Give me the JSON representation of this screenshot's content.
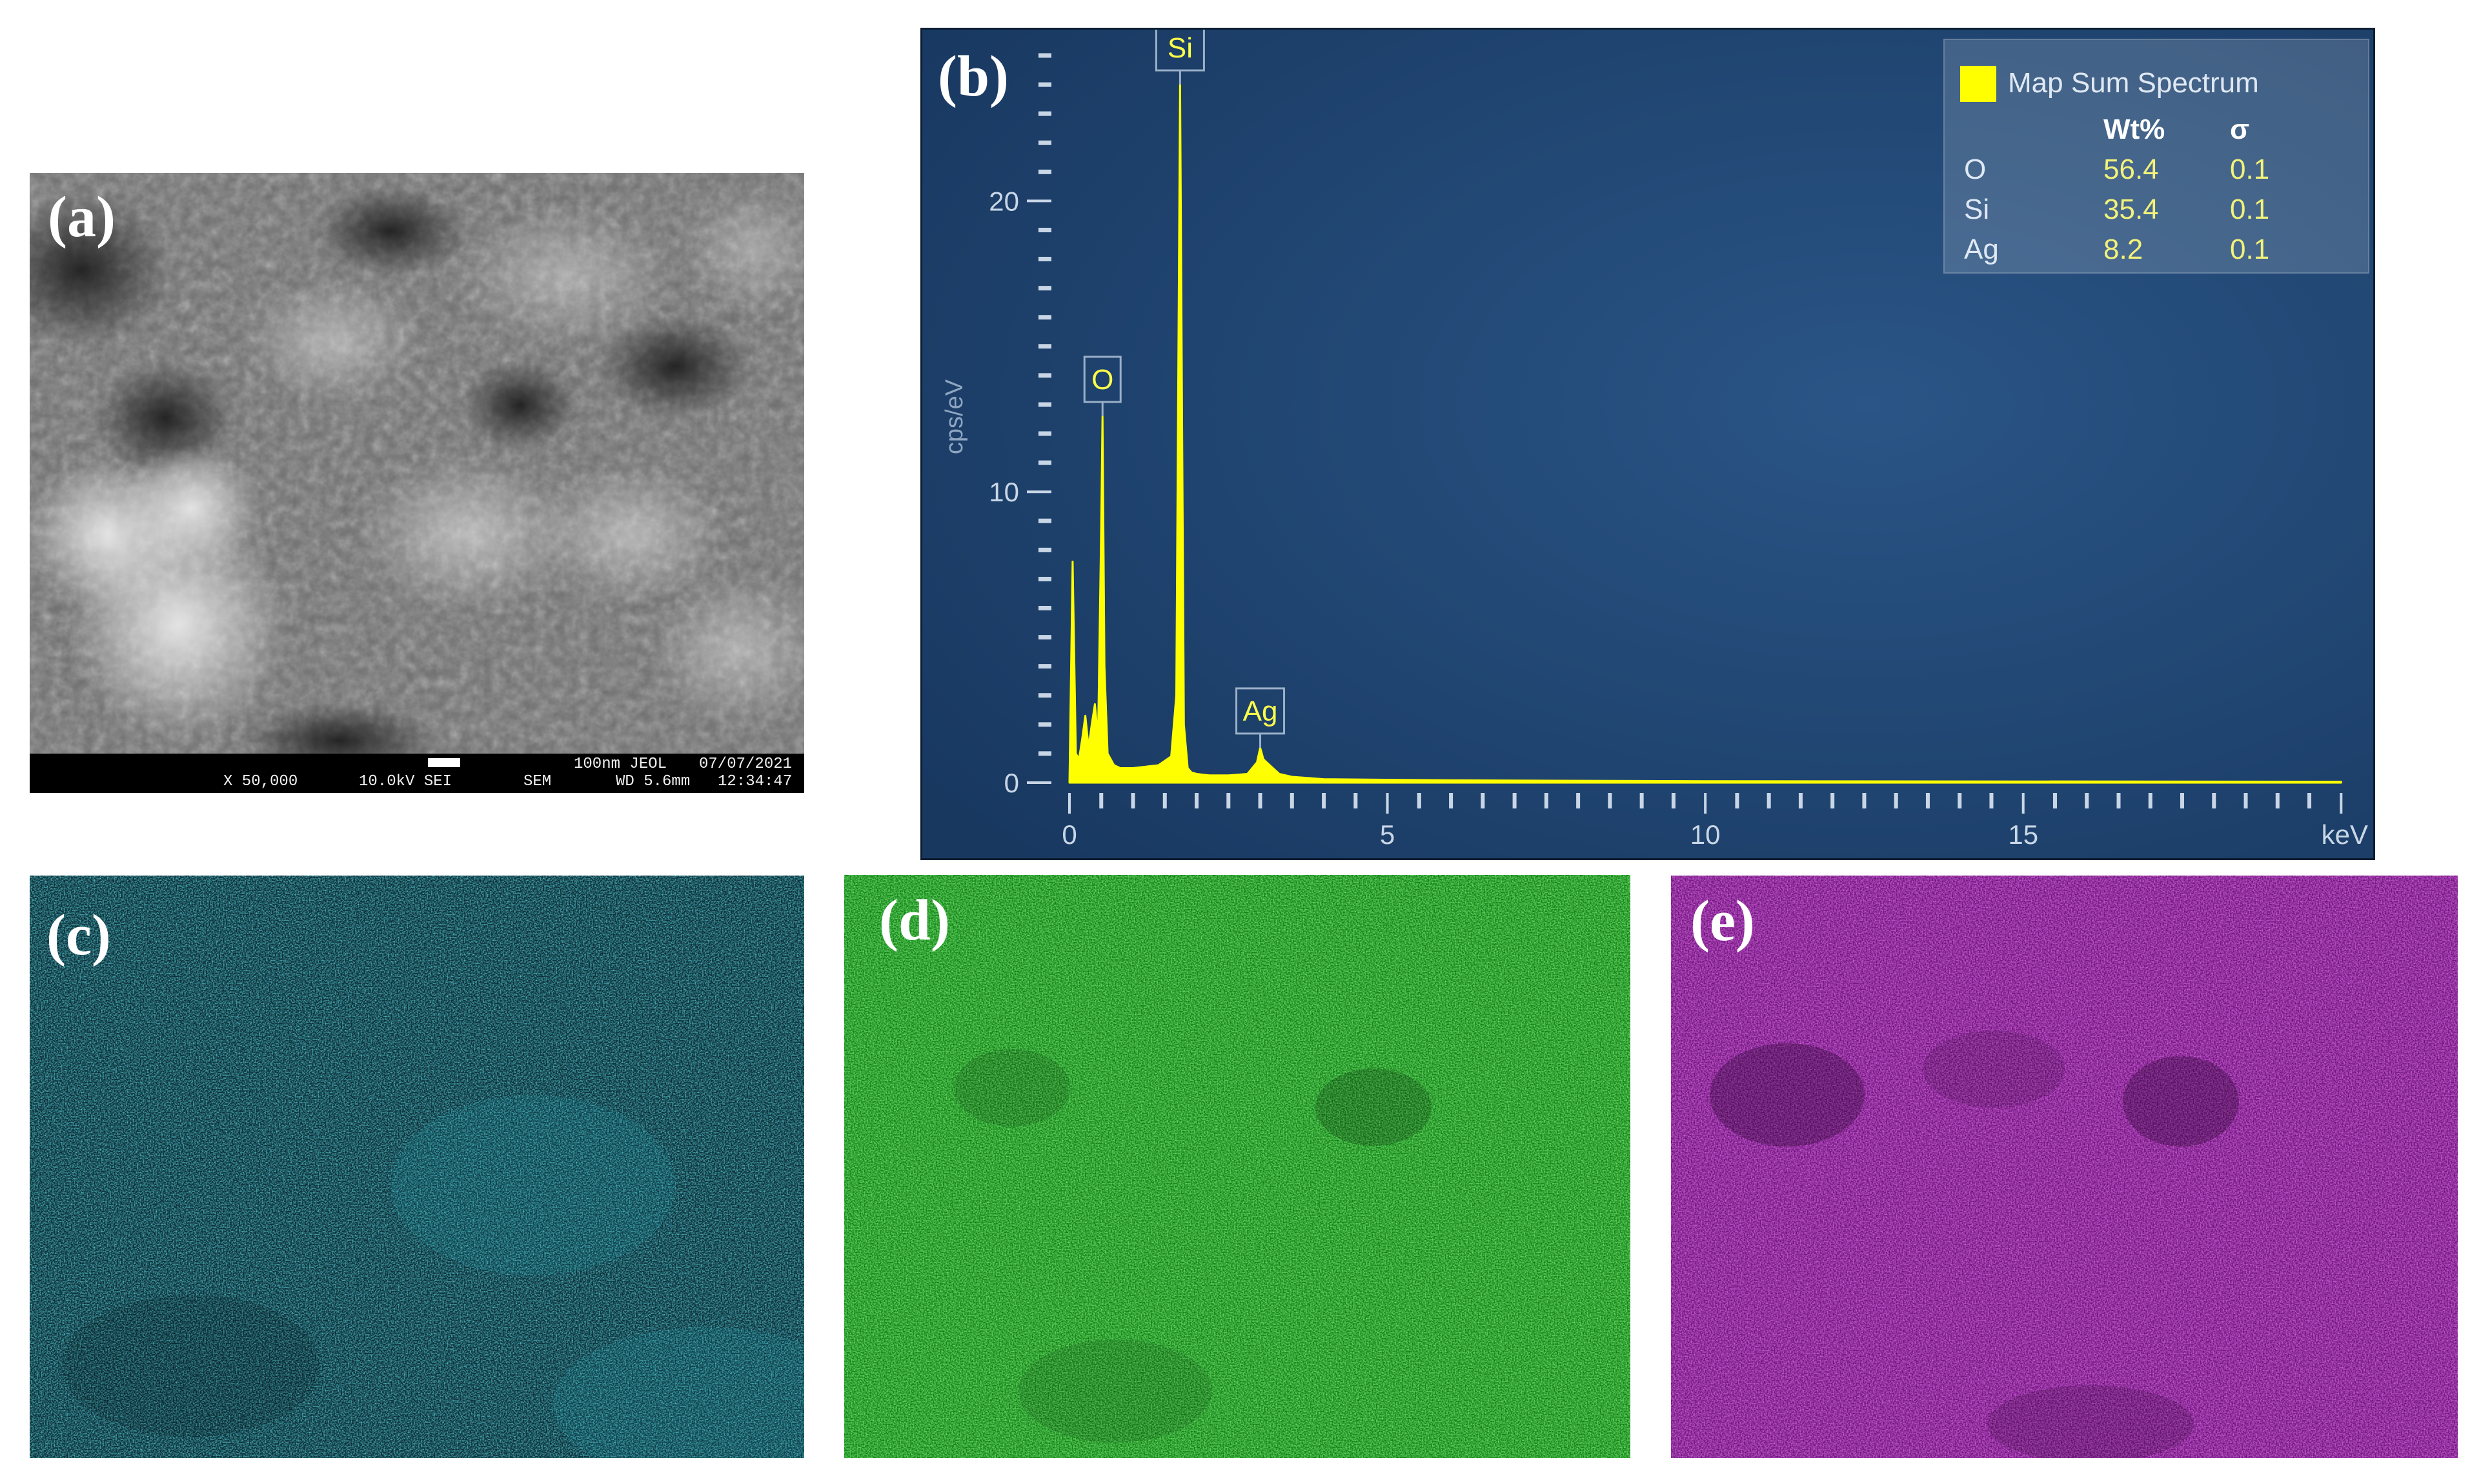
{
  "figure": {
    "panel_a": {
      "label": "(a)",
      "infobar": {
        "mag": "X 50,000",
        "kv": "10.0kV SEI",
        "scale": "100nm JEOL",
        "mode": "SEM",
        "wd": "WD 5.6mm",
        "date": "07/07/2021",
        "time": "12:34:47"
      }
    },
    "panel_b": {
      "label": "(b)",
      "legend": {
        "title": "Map Sum Spectrum",
        "swatch_color": "#ffff00",
        "header_wt": "Wt%",
        "header_sigma": "σ",
        "rows": [
          {
            "element": "O",
            "wt": "56.4",
            "sigma": "0.1"
          },
          {
            "element": "Si",
            "wt": "35.4",
            "sigma": "0.1"
          },
          {
            "element": "Ag",
            "wt": "8.2",
            "sigma": "0.1"
          }
        ]
      }
    },
    "panel_c": {
      "label": "(c)",
      "color": "#1fb6c9"
    },
    "panel_d": {
      "label": "(d)",
      "color": "#22d020"
    },
    "panel_e": {
      "label": "(e)",
      "color": "#b51fc8"
    }
  },
  "chart_data": {
    "type": "line",
    "title": "",
    "xlabel": "keV",
    "ylabel": "cps/eV",
    "xlim": [
      0,
      20.2
    ],
    "ylim": [
      0,
      25
    ],
    "x_ticks": [
      "0",
      "5",
      "10",
      "15"
    ],
    "y_ticks": [
      "0",
      "10",
      "20"
    ],
    "grid": false,
    "legend_position": "top-right",
    "series": [
      {
        "name": "Map Sum Spectrum",
        "color": "#ffff00",
        "x": [
          0.0,
          0.05,
          0.1,
          0.15,
          0.2,
          0.25,
          0.3,
          0.35,
          0.4,
          0.45,
          0.5,
          0.52,
          0.55,
          0.6,
          0.7,
          0.8,
          1.0,
          1.2,
          1.4,
          1.6,
          1.68,
          1.74,
          1.8,
          1.86,
          1.92,
          2.0,
          2.2,
          2.5,
          2.8,
          2.95,
          3.0,
          3.05,
          3.15,
          3.3,
          3.5,
          4.0,
          6.0,
          10.0,
          20.0
        ],
        "y": [
          0.0,
          7.6,
          1.0,
          0.8,
          1.5,
          2.3,
          1.2,
          2.0,
          2.7,
          1.5,
          9.0,
          12.6,
          4.0,
          1.0,
          0.6,
          0.5,
          0.5,
          0.55,
          0.6,
          0.9,
          3.0,
          24.0,
          2.0,
          0.5,
          0.35,
          0.3,
          0.25,
          0.25,
          0.3,
          0.7,
          1.2,
          0.8,
          0.6,
          0.3,
          0.2,
          0.12,
          0.08,
          0.05,
          0.03
        ]
      }
    ],
    "peak_labels": [
      {
        "text": "O",
        "x": 0.52,
        "y": 12.6
      },
      {
        "text": "Si",
        "x": 1.74,
        "y": 24.0
      },
      {
        "text": "Ag",
        "x": 3.0,
        "y": 1.2
      }
    ]
  }
}
